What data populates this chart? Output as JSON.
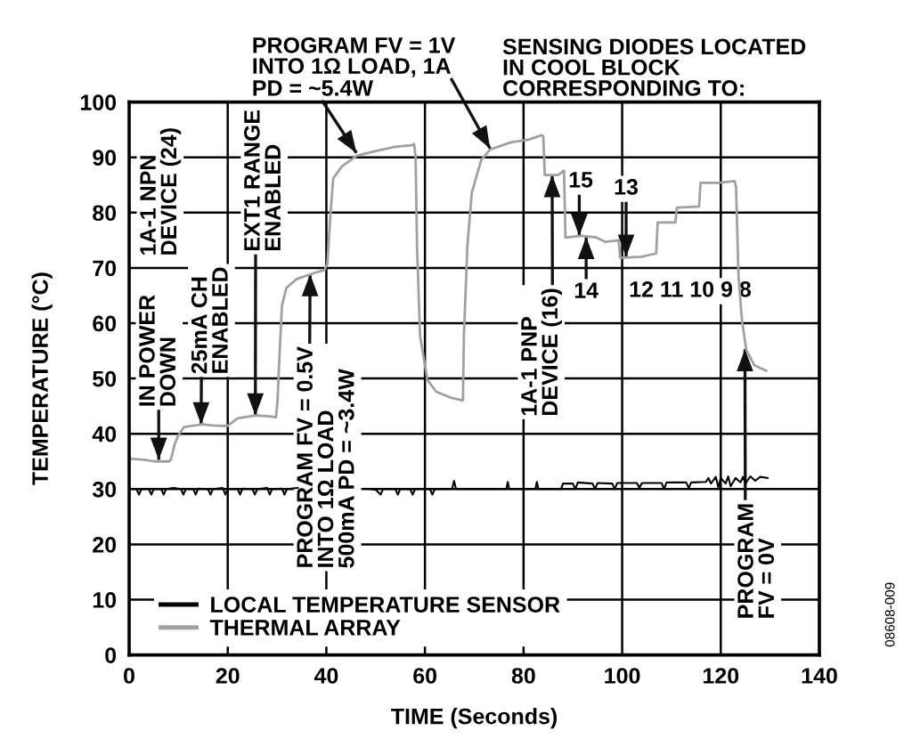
{
  "chart_data": {
    "type": "line",
    "xlabel": "TIME (Seconds)",
    "ylabel": "TEMPERATURE (°C)",
    "xlim": [
      0,
      140
    ],
    "ylim": [
      0,
      100
    ],
    "xticks": [
      0,
      20,
      40,
      60,
      80,
      100,
      120,
      140
    ],
    "yticks": [
      0,
      10,
      20,
      30,
      40,
      50,
      60,
      70,
      80,
      90,
      100
    ],
    "grid": true,
    "legend": "bottom left",
    "series": [
      {
        "name": "LOCAL TEMPERATURE SENSOR",
        "color": "#000000",
        "x": [
          0,
          1.5,
          2,
          2.5,
          4,
          4.5,
          5,
          6.5,
          7,
          7.5,
          9,
          10.5,
          11,
          11.5,
          13,
          13.5,
          14,
          16,
          16.5,
          17,
          19,
          19.5,
          20,
          22,
          22.5,
          23,
          25,
          25.5,
          26,
          28,
          28.5,
          29,
          31,
          31.5,
          32,
          34.2,
          41,
          48.9,
          50,
          51,
          51.5,
          54,
          54.5,
          55,
          57,
          57.5,
          58,
          61,
          61.5,
          62,
          65.5,
          65.9,
          66.3,
          70,
          76.5,
          76.8,
          77.1,
          82.4,
          82.7,
          83,
          87.6,
          88,
          90,
          90.5,
          91,
          94,
          94.5,
          95,
          98,
          98.5,
          99,
          103,
          103.5,
          104,
          108,
          108.5,
          109,
          113,
          113.5,
          114,
          117,
          117.5,
          118,
          119,
          119.5,
          120,
          121,
          121.5,
          122,
          123,
          124,
          124.5,
          125,
          126,
          127,
          128,
          129.5
        ],
        "values": [
          30.0,
          30.0,
          29.0,
          30.0,
          30.0,
          29.0,
          30.0,
          30.0,
          29.0,
          30.0,
          30.2,
          30.0,
          29.0,
          30.0,
          30.0,
          29.0,
          30.1,
          30.0,
          29.0,
          30.0,
          30.2,
          29.0,
          30.0,
          30.0,
          29.0,
          30.1,
          30.0,
          29.0,
          30.0,
          30.2,
          29.0,
          30.0,
          30.1,
          29.0,
          30.0,
          30.2,
          null,
          30.0,
          29.9,
          29.0,
          30.0,
          30.0,
          29.0,
          30.0,
          30.0,
          29.0,
          30.0,
          30.0,
          29.0,
          30.0,
          30.0,
          31.5,
          30.0,
          30.0,
          30.0,
          31.3,
          30.0,
          30.0,
          31.3,
          30.0,
          30.0,
          31.0,
          31.0,
          30.0,
          31.2,
          31.0,
          30.0,
          31.1,
          31.0,
          30.0,
          31.1,
          31.1,
          30.2,
          31.1,
          31.1,
          30.0,
          31.2,
          31.2,
          30.2,
          31.2,
          31.3,
          32.0,
          31.0,
          32.2,
          30.3,
          32.0,
          31.0,
          32.3,
          30.5,
          32.0,
          31.2,
          32.2,
          31.0,
          32.3,
          31.5,
          32.2,
          32.0
        ]
      },
      {
        "name": "THERMAL ARRAY",
        "color": "#a0a0a0",
        "x": [
          0,
          3,
          5.1,
          8.1,
          8.5,
          9.2,
          9.9,
          11.1,
          14.8,
          17,
          19.9,
          22,
          25.6,
          28,
          29.8,
          30.1,
          30.4,
          31.0,
          31.9,
          34.0,
          37.6,
          39.6,
          40.2,
          40.8,
          41.4,
          43.2,
          46.2,
          49.8,
          54.0,
          57.3,
          57.8,
          58.1,
          58.4,
          59.0,
          60.5,
          62.3,
          65.3,
          67.7,
          67.9,
          68.6,
          69.5,
          71.4,
          73.2,
          77.4,
          81.0,
          83.7,
          84.0,
          84.3,
          87.0,
          88.2,
          88.5,
          91.8,
          94.8,
          96.6,
          99.3,
          99.6,
          103.9,
          106.9,
          107.2,
          110.8,
          111.1,
          115.6,
          115.9,
          119.5,
          122.8,
          123.1,
          123.6,
          124.3,
          125.2,
          126.8,
          129.2
        ],
        "values": [
          35.5,
          35.3,
          35.0,
          35.0,
          35.4,
          38.0,
          39.6,
          41.2,
          41.7,
          41.5,
          41.4,
          42.8,
          43.3,
          43.2,
          43.0,
          46.0,
          52.4,
          63.2,
          66.4,
          68.0,
          69.1,
          69.6,
          70.7,
          79.3,
          86.2,
          88.4,
          90.3,
          91.1,
          91.9,
          92.2,
          92.4,
          90.0,
          73.9,
          57.8,
          49.7,
          47.6,
          46.5,
          46.0,
          57.8,
          73.9,
          83.6,
          89.5,
          91.4,
          92.7,
          93.2,
          94.0,
          93.8,
          86.8,
          86.8,
          87.6,
          75.5,
          75.8,
          75.5,
          74.7,
          75.0,
          71.8,
          72.0,
          72.6,
          78.2,
          78.2,
          80.9,
          81.1,
          85.4,
          85.4,
          85.7,
          84.6,
          68.5,
          60.5,
          55.1,
          52.4,
          51.4
        ]
      }
    ],
    "annotations": [
      {
        "text": "PROGRAM FV = 1V\nINTO 1Ω LOAD, 1A",
        "x": 73.2,
        "y": 91.6
      },
      {
        "text": "PD = ~5.4W",
        "x": 46.1,
        "y": 90.8
      },
      "SENSING DIODES LOCATED\nIN COOL BLOCK\nCORRESPONDING TO:",
      "1A-1 NPN\nDEVICE (24)",
      {
        "text": "IN POWER\nDOWN",
        "x": 6.0,
        "y": 35.3
      },
      {
        "text": "25mA CH\nENABLED",
        "x": 14.6,
        "y": 41.7
      },
      {
        "text": "EXT1 RANGE\nENABLED",
        "x": 25.6,
        "y": 43.3
      },
      {
        "text": "PROGRAM FV = 0.5V\nINTO 1Ω LOAD\n500mA PD = ~3.4W",
        "x": 36.7,
        "y": 68.9
      },
      {
        "text": "1A-1 PNP\nDEVICE (16)",
        "x": 85.8,
        "y": 86.8
      },
      {
        "text": "15",
        "x": 91.3,
        "y": 75.8
      },
      {
        "text": "14",
        "x": 92.7,
        "y": 75.6
      },
      {
        "text": "13",
        "x": 100.8,
        "y": 72.0
      },
      "12 11 10 9 8",
      {
        "text": "PROGRAM\nFV = 0V",
        "x": 124.9,
        "y": 55.3
      },
      "08608-009"
    ]
  }
}
